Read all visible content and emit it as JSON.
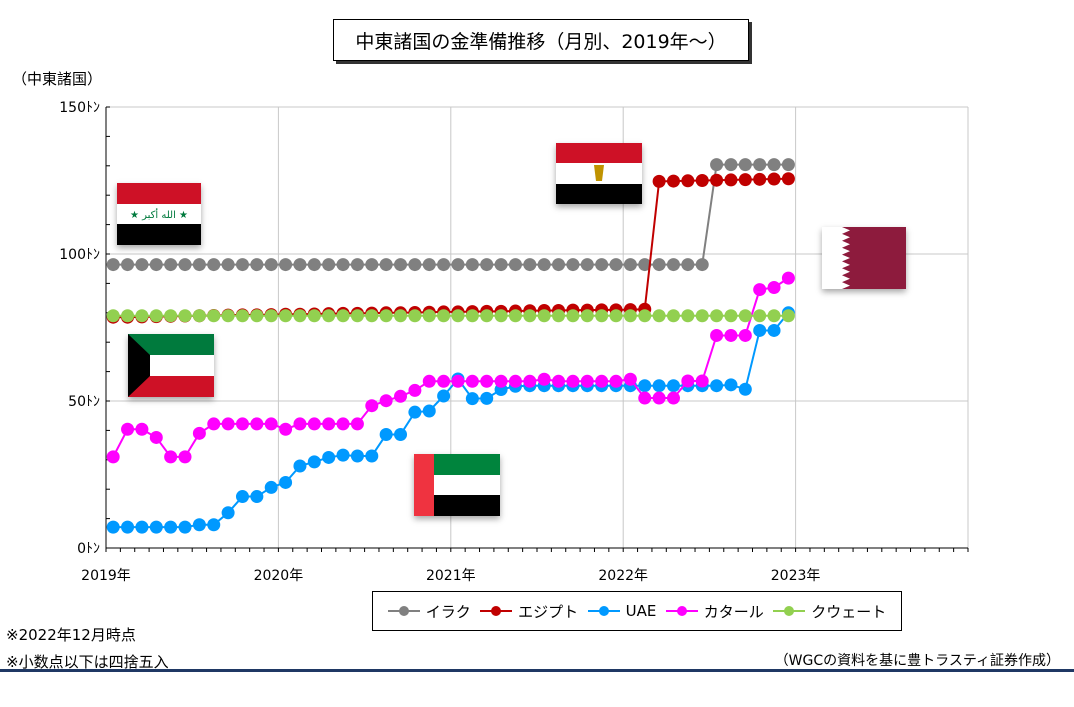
{
  "chart_data": {
    "type": "line",
    "title": "中東諸国の金準備推移（月別、2019年～）",
    "ylabel": "（中東諸国）",
    "ylim": [
      0,
      150
    ],
    "ytick_labels": [
      "0ﾄﾝ",
      "50ﾄﾝ",
      "100ﾄﾝ",
      "150ﾄﾝ"
    ],
    "ytick_values": [
      0,
      50,
      100,
      150
    ],
    "xtick_labels": [
      "2019年",
      "2020年",
      "2021年",
      "2022年",
      "2023年"
    ],
    "x_start": "2019-01",
    "grid": true,
    "legend_position": "bottom",
    "series": [
      {
        "name": "イラク",
        "color": "#808080",
        "values": [
          96.4,
          96.4,
          96.4,
          96.4,
          96.4,
          96.4,
          96.4,
          96.4,
          96.4,
          96.4,
          96.4,
          96.4,
          96.4,
          96.4,
          96.4,
          96.4,
          96.4,
          96.4,
          96.4,
          96.4,
          96.4,
          96.4,
          96.4,
          96.4,
          96.4,
          96.4,
          96.4,
          96.4,
          96.4,
          96.4,
          96.4,
          96.4,
          96.4,
          96.4,
          96.4,
          96.4,
          96.4,
          96.4,
          96.4,
          96.4,
          96.4,
          96.4,
          130.4,
          130.4,
          130.4,
          130.4,
          130.4,
          130.4
        ]
      },
      {
        "name": "エジプト",
        "color": "#c00000",
        "values": [
          78.5,
          78.5,
          78.6,
          78.7,
          78.8,
          78.9,
          79.0,
          79.1,
          79.2,
          79.3,
          79.3,
          79.4,
          79.5,
          79.5,
          79.6,
          79.7,
          79.8,
          79.8,
          79.9,
          80.0,
          80.0,
          80.1,
          80.2,
          80.3,
          80.3,
          80.4,
          80.5,
          80.5,
          80.6,
          80.7,
          80.8,
          80.8,
          80.9,
          80.9,
          81.0,
          81.0,
          81.1,
          81.2,
          124.7,
          124.8,
          124.9,
          125.0,
          125.1,
          125.2,
          125.3,
          125.4,
          125.5,
          125.6
        ]
      },
      {
        "name": "UAE",
        "color": "#0099ff",
        "values": [
          7.1,
          7.1,
          7.1,
          7.1,
          7.1,
          7.1,
          7.9,
          7.9,
          12.0,
          17.5,
          17.5,
          20.6,
          22.3,
          27.9,
          29.3,
          30.8,
          31.6,
          31.3,
          31.3,
          38.6,
          38.6,
          46.2,
          46.6,
          51.7,
          57.5,
          50.8,
          50.9,
          53.9,
          55.0,
          55.2,
          55.2,
          55.2,
          55.2,
          55.2,
          55.2,
          55.2,
          55.2,
          55.2,
          55.2,
          55.2,
          55.2,
          55.2,
          55.2,
          55.5,
          54.0,
          74.0,
          74.0,
          80.0
        ]
      },
      {
        "name": "カタール",
        "color": "#ff00ff",
        "values": [
          31.0,
          40.4,
          40.4,
          37.6,
          31.0,
          31.0,
          39.0,
          42.2,
          42.2,
          42.2,
          42.2,
          42.2,
          40.4,
          42.2,
          42.2,
          42.2,
          42.2,
          42.2,
          48.4,
          50.1,
          51.6,
          53.6,
          56.7,
          56.7,
          56.7,
          56.7,
          56.7,
          56.7,
          56.7,
          56.7,
          57.4,
          56.7,
          56.7,
          56.7,
          56.7,
          56.7,
          57.4,
          51.0,
          51.0,
          51.0,
          56.8,
          56.8,
          72.3,
          72.3,
          72.3,
          87.9,
          88.6,
          91.8
        ]
      },
      {
        "name": "クウェート",
        "color": "#92d050",
        "values": [
          79.0,
          79.0,
          79.0,
          79.0,
          79.0,
          79.0,
          79.0,
          79.0,
          79.0,
          79.0,
          79.0,
          79.0,
          79.0,
          79.0,
          79.0,
          79.0,
          79.0,
          79.0,
          79.0,
          79.0,
          79.0,
          79.0,
          79.0,
          79.0,
          79.0,
          79.0,
          79.0,
          79.0,
          79.0,
          79.0,
          79.0,
          79.0,
          79.0,
          79.0,
          79.0,
          79.0,
          79.0,
          79.0,
          79.0,
          79.0,
          79.0,
          79.0,
          79.0,
          79.0,
          79.0,
          79.0,
          79.0,
          79.0
        ]
      }
    ]
  },
  "flags": [
    {
      "country": "iraq",
      "text": "الله أكبر"
    },
    {
      "country": "egypt"
    },
    {
      "country": "kuwait"
    },
    {
      "country": "uae"
    },
    {
      "country": "qatar"
    }
  ],
  "notes": {
    "note1": "※2022年12月時点",
    "note2": "※小数点以下は四捨五入",
    "source": "（WGCの資料を基に豊トラスティ証券作成）"
  }
}
